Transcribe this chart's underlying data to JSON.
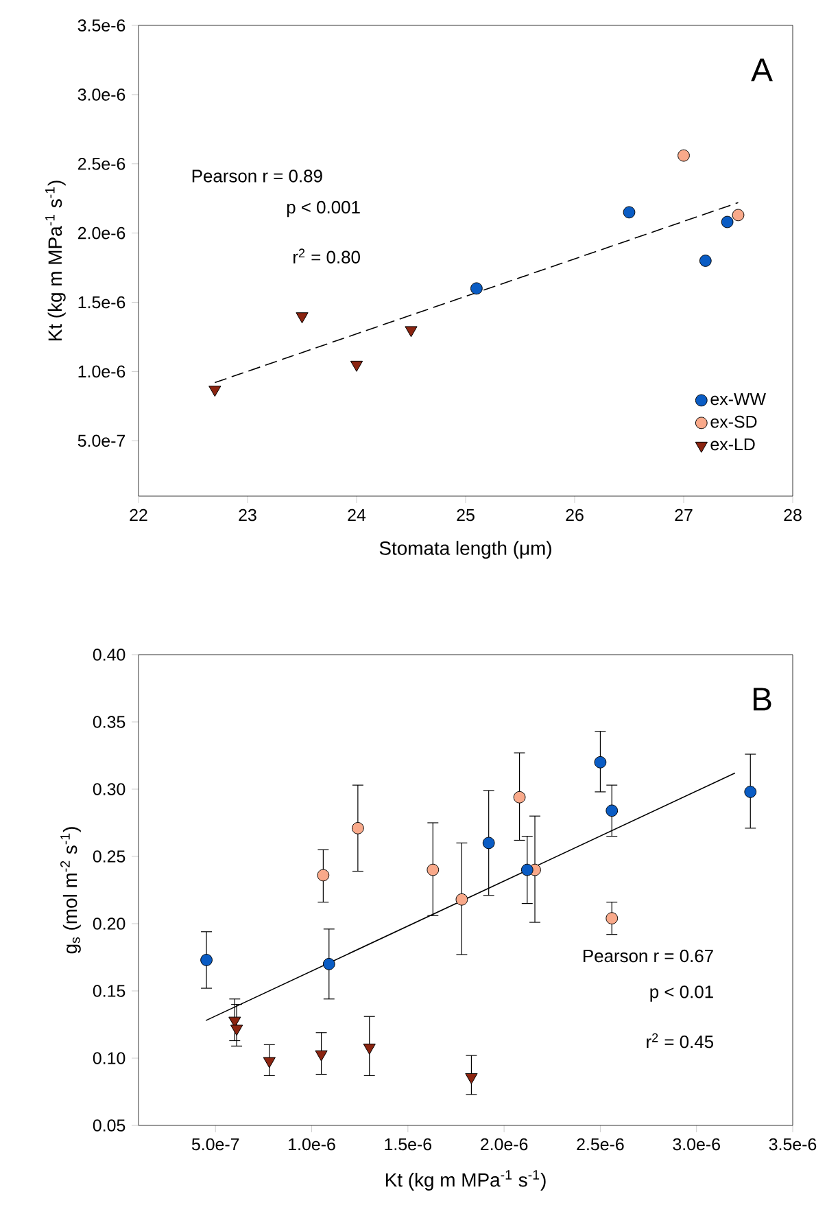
{
  "chart_data": [
    {
      "type": "scatter",
      "xlabel": "Stomata length (μm)",
      "ylabel": "Kt (kg m MPa$^{-1}$ s$^{-1}$)",
      "xlim": [
        22,
        28
      ],
      "ylim": [
        1e-07,
        3.5e-06
      ],
      "xticks": [
        22,
        23,
        24,
        25,
        26,
        27,
        28
      ],
      "yticks": [
        {
          "value": 5e-07,
          "label": "5.0e-7"
        },
        {
          "value": 1e-06,
          "label": "1.0e-6"
        },
        {
          "value": 1.5e-06,
          "label": "1.5e-6"
        },
        {
          "value": 2e-06,
          "label": "2.0e-6"
        },
        {
          "value": 2.5e-06,
          "label": "2.5e-6"
        },
        {
          "value": 3e-06,
          "label": "3.0e-6"
        },
        {
          "value": 3.5e-06,
          "label": "3.5e-6"
        }
      ],
      "legend": "bottom right",
      "annotations": [
        "A",
        "Pearson r = 0.89",
        "p < 0.001",
        "r$^{2}$ = 0.80"
      ],
      "series": [
        {
          "name": "ex-WW",
          "color": "#0a5cc4",
          "marker": "circle",
          "x": [
            25.1,
            26.5,
            27.2,
            27.4
          ],
          "values": [
            1.6e-06,
            2.15e-06,
            1.8e-06,
            2.08e-06
          ]
        },
        {
          "name": "ex-SD",
          "color": "#f9a98a",
          "marker": "circle",
          "x": [
            27.0,
            27.5
          ],
          "values": [
            2.56e-06,
            2.13e-06
          ]
        },
        {
          "name": "ex-LD",
          "color": "#8b2410",
          "marker": "triangle",
          "x": [
            22.7,
            23.5,
            24.0,
            24.5
          ],
          "values": [
            8.7e-07,
            1.4e-06,
            1.05e-06,
            1.3e-06
          ]
        },
        {
          "type": "line",
          "color": "#000000",
          "marker": "none",
          "line_style": "dashed",
          "x": [
            22.7,
            27.5
          ],
          "values": [
            9.2e-07,
            2.22e-06
          ]
        }
      ]
    },
    {
      "type": "scatter",
      "xlabel": "Kt (kg m MPa$^{-1}$ s$^{-1}$)",
      "ylabel": "g$_{s}$ (mol m$^{-2}$ s$^{-1}$)",
      "xlim": [
        1e-07,
        3.5e-06
      ],
      "ylim": [
        0.05,
        0.4
      ],
      "xticks": [
        {
          "value": 5e-07,
          "label": "5.0e-7"
        },
        {
          "value": 1e-06,
          "label": "1.0e-6"
        },
        {
          "value": 1.5e-06,
          "label": "1.5e-6"
        },
        {
          "value": 2e-06,
          "label": "2.0e-6"
        },
        {
          "value": 2.5e-06,
          "label": "2.5e-6"
        },
        {
          "value": 3e-06,
          "label": "3.0e-6"
        },
        {
          "value": 3.5e-06,
          "label": "3.5e-6"
        }
      ],
      "yticks": [
        {
          "value": 0.05,
          "label": "0.05"
        },
        {
          "value": 0.1,
          "label": "0.10"
        },
        {
          "value": 0.15,
          "label": "0.15"
        },
        {
          "value": 0.2,
          "label": "0.20"
        },
        {
          "value": 0.25,
          "label": "0.25"
        },
        {
          "value": 0.3,
          "label": "0.30"
        },
        {
          "value": 0.35,
          "label": "0.35"
        },
        {
          "value": 0.4,
          "label": "0.40"
        }
      ],
      "annotations": [
        "B",
        "Pearson r = 0.67",
        "p < 0.01",
        "r$^{2}$ = 0.45"
      ],
      "series": [
        {
          "color": "#f9a98a",
          "marker": "circle",
          "x": [
            1.06e-06,
            1.24e-06,
            1.63e-06,
            1.78e-06,
            2.08e-06,
            2.16e-06,
            2.56e-06
          ],
          "values": [
            0.236,
            0.271,
            0.24,
            0.218,
            0.294,
            0.24,
            0.204
          ],
          "errors": [
            [
              0.216,
              0.255
            ],
            [
              0.239,
              0.303
            ],
            [
              0.206,
              0.275
            ],
            [
              0.177,
              0.26
            ],
            [
              0.262,
              0.327
            ],
            [
              0.201,
              0.28
            ],
            [
              0.192,
              0.216
            ]
          ]
        },
        {
          "color": "#0a5cc4",
          "marker": "circle",
          "x": [
            4.53e-07,
            1.09e-06,
            1.92e-06,
            2.12e-06,
            2.5e-06,
            2.56e-06,
            3.28e-06
          ],
          "values": [
            0.173,
            0.17,
            0.26,
            0.24,
            0.32,
            0.284,
            0.298
          ],
          "errors": [
            [
              0.152,
              0.194
            ],
            [
              0.144,
              0.196
            ],
            [
              0.221,
              0.299
            ],
            [
              0.215,
              0.265
            ],
            [
              0.298,
              0.343
            ],
            [
              0.265,
              0.303
            ],
            [
              0.271,
              0.326
            ]
          ]
        },
        {
          "color": "#8b2410",
          "marker": "triangle",
          "x": [
            6e-07,
            6.1e-07,
            7.8e-07,
            1.05e-06,
            1.3e-06,
            1.83e-06
          ],
          "values": [
            0.128,
            0.122,
            0.098,
            0.103,
            0.108,
            0.086
          ],
          "errors": [
            [
              0.113,
              0.144
            ],
            [
              0.109,
              0.14
            ],
            [
              0.087,
              0.11
            ],
            [
              0.088,
              0.119
            ],
            [
              0.087,
              0.131
            ],
            [
              0.073,
              0.102
            ]
          ]
        },
        {
          "type": "line",
          "color": "#000000",
          "marker": "none",
          "line_style": "solid",
          "x": [
            4.5e-07,
            3.2e-06
          ],
          "values": [
            0.128,
            0.312
          ]
        }
      ]
    }
  ]
}
